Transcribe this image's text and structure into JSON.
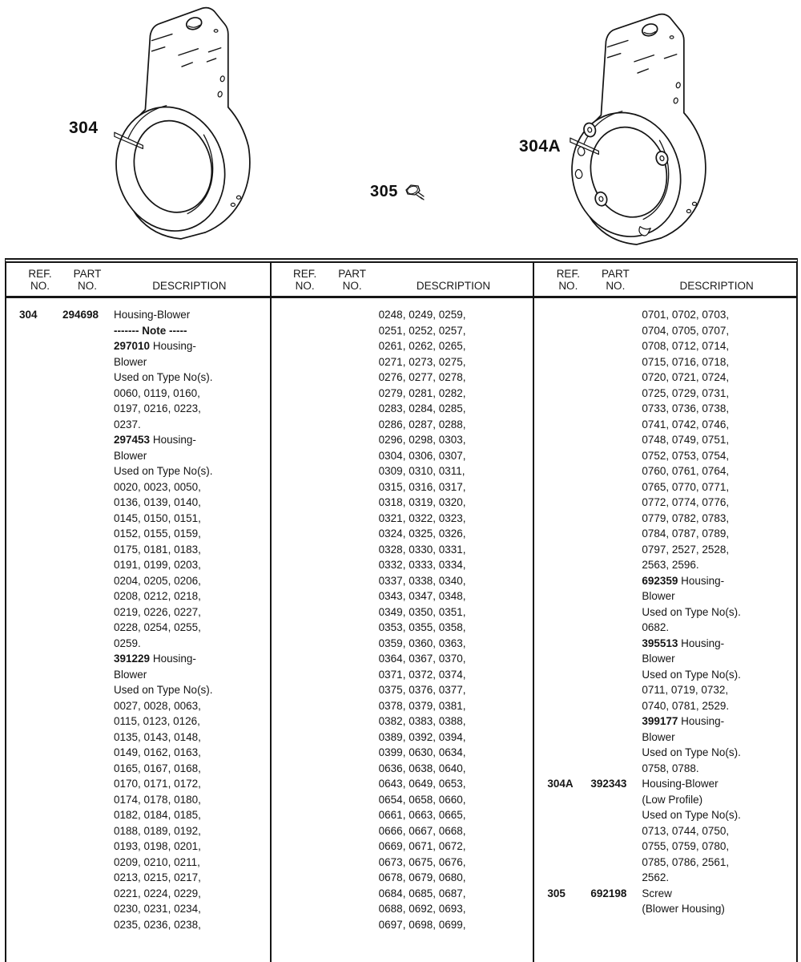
{
  "colors": {
    "ink": "#161616",
    "paper": "#ffffff"
  },
  "diagram": {
    "labels": {
      "part304": "304",
      "part305": "305",
      "part304a": "304A"
    }
  },
  "table": {
    "header": {
      "ref1": "REF.",
      "ref2": "NO.",
      "part1": "PART",
      "part2": "NO.",
      "desc": "DESCRIPTION"
    },
    "columns": [
      {
        "segments": [
          {
            "ref": "304",
            "part": "294698",
            "lines": [
              [
                "",
                "Housing-Blower"
              ],
              [
                "------- Note -----",
                ""
              ],
              [
                "297010",
                " Housing-"
              ],
              [
                "",
                "Blower"
              ],
              [
                "",
                "Used on Type No(s)."
              ],
              [
                "",
                "0060, 0119, 0160,"
              ],
              [
                "",
                "0197, 0216, 0223,"
              ],
              [
                "",
                "0237."
              ],
              [
                "297453",
                " Housing-"
              ],
              [
                "",
                "Blower"
              ],
              [
                "",
                "Used on Type No(s)."
              ],
              [
                "",
                "0020, 0023, 0050,"
              ],
              [
                "",
                "0136, 0139, 0140,"
              ],
              [
                "",
                "0145, 0150, 0151,"
              ],
              [
                "",
                "0152, 0155, 0159,"
              ],
              [
                "",
                "0175, 0181, 0183,"
              ],
              [
                "",
                "0191, 0199, 0203,"
              ],
              [
                "",
                "0204, 0205, 0206,"
              ],
              [
                "",
                "0208, 0212, 0218,"
              ],
              [
                "",
                "0219, 0226, 0227,"
              ],
              [
                "",
                "0228, 0254, 0255,"
              ],
              [
                "",
                "0259."
              ],
              [
                "391229",
                " Housing-"
              ],
              [
                "",
                "Blower"
              ],
              [
                "",
                "Used on Type No(s)."
              ],
              [
                "",
                "0027, 0028, 0063,"
              ],
              [
                "",
                "0115, 0123, 0126,"
              ],
              [
                "",
                "0135, 0143, 0148,"
              ],
              [
                "",
                "0149, 0162, 0163,"
              ],
              [
                "",
                "0165, 0167, 0168,"
              ],
              [
                "",
                "0170, 0171, 0172,"
              ],
              [
                "",
                "0174, 0178, 0180,"
              ],
              [
                "",
                "0182, 0184, 0185,"
              ],
              [
                "",
                "0188, 0189, 0192,"
              ],
              [
                "",
                "0193, 0198, 0201,"
              ],
              [
                "",
                "0209, 0210, 0211,"
              ],
              [
                "",
                "0213, 0215, 0217,"
              ],
              [
                "",
                "0221, 0224, 0229,"
              ],
              [
                "",
                "0230, 0231, 0234,"
              ],
              [
                "",
                "0235, 0236, 0238,"
              ]
            ]
          }
        ]
      },
      {
        "segments": [
          {
            "ref": "",
            "part": "",
            "lines": [
              [
                "",
                "0248, 0249, 0259,"
              ],
              [
                "",
                "0251, 0252, 0257,"
              ],
              [
                "",
                "0261, 0262, 0265,"
              ],
              [
                "",
                "0271, 0273, 0275,"
              ],
              [
                "",
                "0276, 0277, 0278,"
              ],
              [
                "",
                "0279, 0281, 0282,"
              ],
              [
                "",
                "0283, 0284, 0285,"
              ],
              [
                "",
                "0286, 0287, 0288,"
              ],
              [
                "",
                "0296, 0298, 0303,"
              ],
              [
                "",
                "0304, 0306, 0307,"
              ],
              [
                "",
                "0309, 0310, 0311,"
              ],
              [
                "",
                "0315, 0316, 0317,"
              ],
              [
                "",
                "0318, 0319, 0320,"
              ],
              [
                "",
                "0321, 0322, 0323,"
              ],
              [
                "",
                "0324, 0325, 0326,"
              ],
              [
                "",
                "0328, 0330, 0331,"
              ],
              [
                "",
                "0332, 0333, 0334,"
              ],
              [
                "",
                "0337, 0338, 0340,"
              ],
              [
                "",
                "0343, 0347, 0348,"
              ],
              [
                "",
                "0349, 0350, 0351,"
              ],
              [
                "",
                "0353, 0355, 0358,"
              ],
              [
                "",
                "0359, 0360, 0363,"
              ],
              [
                "",
                "0364, 0367, 0370,"
              ],
              [
                "",
                "0371, 0372, 0374,"
              ],
              [
                "",
                "0375, 0376, 0377,"
              ],
              [
                "",
                "0378, 0379, 0381,"
              ],
              [
                "",
                "0382, 0383, 0388,"
              ],
              [
                "",
                "0389, 0392, 0394,"
              ],
              [
                "",
                "0399, 0630, 0634,"
              ],
              [
                "",
                "0636, 0638, 0640,"
              ],
              [
                "",
                "0643, 0649, 0653,"
              ],
              [
                "",
                "0654, 0658, 0660,"
              ],
              [
                "",
                "0661, 0663, 0665,"
              ],
              [
                "",
                "0666, 0667, 0668,"
              ],
              [
                "",
                "0669, 0671, 0672,"
              ],
              [
                "",
                "0673, 0675, 0676,"
              ],
              [
                "",
                "0678, 0679, 0680,"
              ],
              [
                "",
                "0684, 0685, 0687,"
              ],
              [
                "",
                "0688, 0692, 0693,"
              ],
              [
                "",
                "0697, 0698, 0699,"
              ]
            ]
          }
        ]
      },
      {
        "segments": [
          {
            "ref": "",
            "part": "",
            "lines": [
              [
                "",
                "0701, 0702, 0703,"
              ],
              [
                "",
                "0704, 0705, 0707,"
              ],
              [
                "",
                "0708, 0712, 0714,"
              ],
              [
                "",
                "0715, 0716, 0718,"
              ],
              [
                "",
                "0720, 0721, 0724,"
              ],
              [
                "",
                "0725, 0729, 0731,"
              ],
              [
                "",
                "0733, 0736, 0738,"
              ],
              [
                "",
                "0741, 0742, 0746,"
              ],
              [
                "",
                "0748, 0749, 0751,"
              ],
              [
                "",
                "0752, 0753, 0754,"
              ],
              [
                "",
                "0760, 0761, 0764,"
              ],
              [
                "",
                "0765, 0770, 0771,"
              ],
              [
                "",
                "0772, 0774, 0776,"
              ],
              [
                "",
                "0779, 0782, 0783,"
              ],
              [
                "",
                "0784, 0787, 0789,"
              ],
              [
                "",
                "0797, 2527, 2528,"
              ],
              [
                "",
                "2563, 2596."
              ],
              [
                "692359",
                " Housing-"
              ],
              [
                "",
                "Blower"
              ],
              [
                "",
                "Used on Type No(s)."
              ],
              [
                "",
                "0682."
              ],
              [
                "395513",
                " Housing-"
              ],
              [
                "",
                "Blower"
              ],
              [
                "",
                "Used on Type No(s)."
              ],
              [
                "",
                "0711, 0719, 0732,"
              ],
              [
                "",
                "0740, 0781, 2529."
              ],
              [
                "399177",
                " Housing-"
              ],
              [
                "",
                "Blower"
              ],
              [
                "",
                "Used on Type No(s)."
              ],
              [
                "",
                "0758, 0788."
              ]
            ]
          },
          {
            "ref": "304A",
            "part": "392343",
            "lines": [
              [
                "",
                "Housing-Blower"
              ],
              [
                "",
                "(Low Profile)"
              ],
              [
                "",
                "Used on Type No(s)."
              ],
              [
                "",
                "0713, 0744, 0750,"
              ],
              [
                "",
                "0755, 0759, 0780,"
              ],
              [
                "",
                "0785, 0786, 2561,"
              ],
              [
                "",
                "2562."
              ]
            ]
          },
          {
            "ref": "305",
            "part": "692198",
            "lines": [
              [
                "",
                "Screw"
              ],
              [
                "",
                "(Blower Housing)"
              ]
            ]
          }
        ]
      }
    ]
  }
}
